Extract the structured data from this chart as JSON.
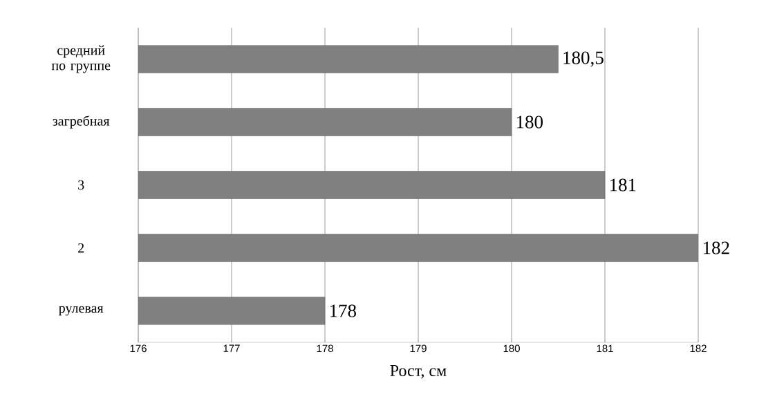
{
  "chart_data": {
    "type": "bar",
    "orientation": "horizontal",
    "categories": [
      "средний по группе",
      "загребная",
      "3",
      "2",
      "рулевая"
    ],
    "values": [
      180.5,
      180,
      181,
      182,
      178
    ],
    "value_labels": [
      "180,5",
      "180",
      "181",
      "182",
      "178"
    ],
    "color": "#808080",
    "xlim": [
      176,
      182
    ],
    "xticks": [
      176,
      177,
      178,
      179,
      180,
      181,
      182
    ],
    "xlabel": "Рост, см",
    "grid": "x"
  }
}
